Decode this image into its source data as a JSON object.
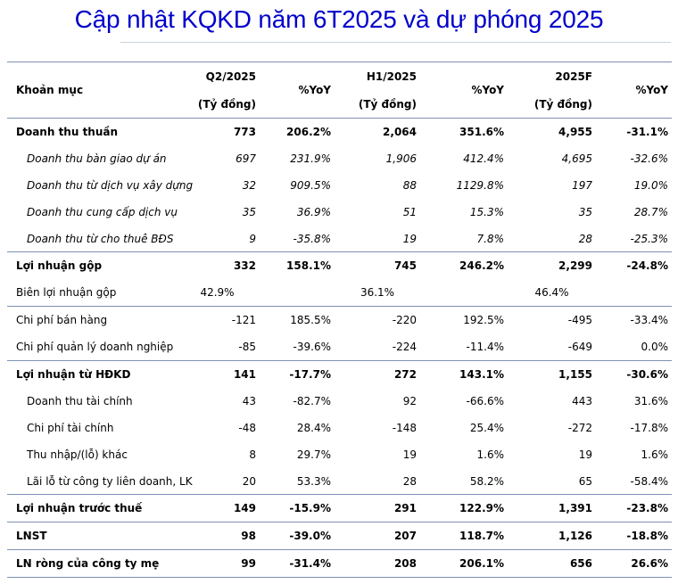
{
  "title": "Cập nhật KQKD năm 6T2025 và dự phóng 2025",
  "header": {
    "item_label": "Khoản mục",
    "q2_label": "Q2/2025",
    "h1_label": "H1/2025",
    "f_label": "2025F",
    "unit": "(Tỷ đồng)",
    "yoy": "%YoY"
  },
  "rows": [
    {
      "label": "Doanh thu thuần",
      "q2": "773",
      "q2_yoy": "206.2%",
      "h1": "2,064",
      "h1_yoy": "351.6%",
      "f": "4,955",
      "f_yoy": "-31.1%"
    },
    {
      "label": "Doanh thu bàn giao dự án",
      "q2": "697",
      "q2_yoy": "231.9%",
      "h1": "1,906",
      "h1_yoy": "412.4%",
      "f": "4,695",
      "f_yoy": "-32.6%"
    },
    {
      "label": "Doanh thu từ dịch vụ xây dựng",
      "q2": "32",
      "q2_yoy": "909.5%",
      "h1": "88",
      "h1_yoy": "1129.8%",
      "f": "197",
      "f_yoy": "19.0%"
    },
    {
      "label": "Doanh thu cung cấp dịch vụ",
      "q2": "35",
      "q2_yoy": "36.9%",
      "h1": "51",
      "h1_yoy": "15.3%",
      "f": "35",
      "f_yoy": "28.7%"
    },
    {
      "label": "Doanh thu từ cho thuê BĐS",
      "q2": "9",
      "q2_yoy": "-35.8%",
      "h1": "19",
      "h1_yoy": "7.8%",
      "f": "28",
      "f_yoy": "-25.3%"
    },
    {
      "label": "Lợi nhuận gộp",
      "q2": "332",
      "q2_yoy": "158.1%",
      "h1": "745",
      "h1_yoy": "246.2%",
      "f": "2,299",
      "f_yoy": "-24.8%"
    },
    {
      "label": "Biên lợi nhuận gộp",
      "q2": "42.9%",
      "q2_yoy": "",
      "h1": "36.1%",
      "h1_yoy": "",
      "f": "46.4%",
      "f_yoy": ""
    },
    {
      "label": "Chi phí bán hàng",
      "q2": "-121",
      "q2_yoy": "185.5%",
      "h1": "-220",
      "h1_yoy": "192.5%",
      "f": "-495",
      "f_yoy": "-33.4%"
    },
    {
      "label": "Chi phí quản lý doanh nghiệp",
      "q2": "-85",
      "q2_yoy": "-39.6%",
      "h1": "-224",
      "h1_yoy": "-11.4%",
      "f": "-649",
      "f_yoy": "0.0%"
    },
    {
      "label": "Lợi nhuận từ HĐKD",
      "q2": "141",
      "q2_yoy": "-17.7%",
      "h1": "272",
      "h1_yoy": "143.1%",
      "f": "1,155",
      "f_yoy": "-30.6%"
    },
    {
      "label": "Doanh thu tài chính",
      "q2": "43",
      "q2_yoy": "-82.7%",
      "h1": "92",
      "h1_yoy": "-66.6%",
      "f": "443",
      "f_yoy": "31.6%"
    },
    {
      "label": "Chi phí tài chính",
      "q2": "-48",
      "q2_yoy": "28.4%",
      "h1": "-148",
      "h1_yoy": "25.4%",
      "f": "-272",
      "f_yoy": "-17.8%"
    },
    {
      "label": "Thu nhập/(lỗ) khác",
      "q2": "8",
      "q2_yoy": "29.7%",
      "h1": "19",
      "h1_yoy": "1.6%",
      "f": "19",
      "f_yoy": "1.6%"
    },
    {
      "label": "Lãi lỗ từ công ty liên doanh, LK",
      "q2": "20",
      "q2_yoy": "53.3%",
      "h1": "28",
      "h1_yoy": "58.2%",
      "f": "65",
      "f_yoy": "-58.4%"
    },
    {
      "label": "Lợi nhuận trước thuế",
      "q2": "149",
      "q2_yoy": "-15.9%",
      "h1": "291",
      "h1_yoy": "122.9%",
      "f": "1,391",
      "f_yoy": "-23.8%"
    },
    {
      "label": "LNST",
      "q2": "98",
      "q2_yoy": "-39.0%",
      "h1": "207",
      "h1_yoy": "118.7%",
      "f": "1,126",
      "f_yoy": "-18.8%"
    },
    {
      "label": "LN ròng của công ty mẹ",
      "q2": "99",
      "q2_yoy": "-31.4%",
      "h1": "208",
      "h1_yoy": "206.1%",
      "f": "656",
      "f_yoy": "26.6%"
    }
  ]
}
